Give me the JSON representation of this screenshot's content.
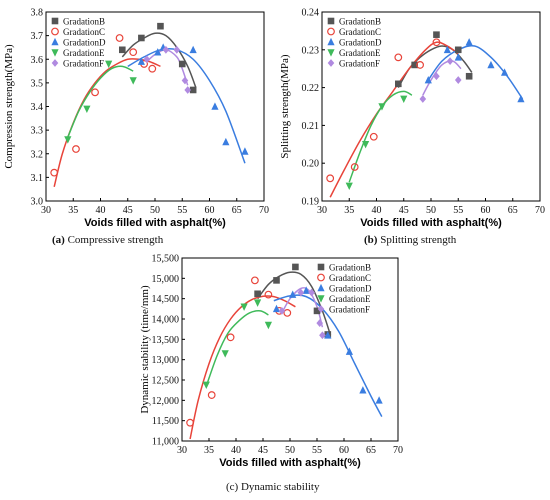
{
  "chart_data": [
    {
      "type": "scatter",
      "panel_letter": "(a)",
      "caption": "Compressive strength",
      "xlabel": "Voids filled with asphalt(%)",
      "ylabel": "Compression strength(MPa)",
      "xlim": [
        30,
        70
      ],
      "ylim": [
        3.0,
        3.8
      ],
      "xticks": [
        "30",
        "35",
        "40",
        "45",
        "50",
        "55",
        "60",
        "65",
        "70"
      ],
      "yticks": [
        "3.0",
        "3.1",
        "3.2",
        "3.3",
        "3.4",
        "3.5",
        "3.6",
        "3.7",
        "3.8"
      ],
      "legend_position": "top-left",
      "series": [
        {
          "name": "GradationB",
          "color": "#555555",
          "marker": "square",
          "points": [
            [
              44,
              3.64
            ],
            [
              47.5,
              3.69
            ],
            [
              51,
              3.74
            ],
            [
              55,
              3.58
            ],
            [
              57,
              3.47
            ]
          ],
          "fit": [
            [
              44,
              3.61
            ],
            [
              46,
              3.66
            ],
            [
              48,
              3.69
            ],
            [
              50,
              3.71
            ],
            [
              52,
              3.7
            ],
            [
              54,
              3.65
            ],
            [
              56,
              3.57
            ],
            [
              57.5,
              3.48
            ]
          ]
        },
        {
          "name": "GradationC",
          "color": "#e8443a",
          "marker": "circle",
          "points": [
            [
              31.5,
              3.12
            ],
            [
              35.5,
              3.22
            ],
            [
              39,
              3.46
            ],
            [
              43.5,
              3.69
            ],
            [
              46,
              3.63
            ],
            [
              48,
              3.58
            ],
            [
              49.5,
              3.56
            ]
          ],
          "fit": [
            [
              31.5,
              3.06
            ],
            [
              33,
              3.2
            ],
            [
              35,
              3.33
            ],
            [
              37,
              3.43
            ],
            [
              39,
              3.5
            ],
            [
              41,
              3.55
            ],
            [
              43,
              3.58
            ],
            [
              45,
              3.6
            ],
            [
              47,
              3.6
            ],
            [
              49,
              3.59
            ],
            [
              51,
              3.57
            ]
          ]
        },
        {
          "name": "GradationD",
          "color": "#3a7de0",
          "marker": "triangle-up",
          "points": [
            [
              47.5,
              3.59
            ],
            [
              50.5,
              3.63
            ],
            [
              51.5,
              3.65
            ],
            [
              57,
              3.64
            ],
            [
              61,
              3.4
            ],
            [
              63,
              3.25
            ],
            [
              66.5,
              3.21
            ]
          ],
          "fit": [
            [
              45,
              3.57
            ],
            [
              48,
              3.61
            ],
            [
              51,
              3.64
            ],
            [
              54,
              3.64
            ],
            [
              57,
              3.6
            ],
            [
              60,
              3.51
            ],
            [
              63,
              3.38
            ],
            [
              66.5,
              3.16
            ]
          ]
        },
        {
          "name": "GradationE",
          "color": "#3fba5a",
          "marker": "triangle-down",
          "points": [
            [
              34,
              3.26
            ],
            [
              37.5,
              3.39
            ],
            [
              41.5,
              3.58
            ],
            [
              46,
              3.51
            ]
          ],
          "fit": [
            [
              34,
              3.27
            ],
            [
              36,
              3.38
            ],
            [
              38,
              3.46
            ],
            [
              40,
              3.52
            ],
            [
              42,
              3.56
            ],
            [
              44,
              3.57
            ],
            [
              46,
              3.55
            ]
          ]
        },
        {
          "name": "GradationF",
          "color": "#b08ae0",
          "marker": "diamond",
          "points": [
            [
              48.5,
              3.6
            ],
            [
              52,
              3.64
            ],
            [
              54,
              3.64
            ],
            [
              55.5,
              3.51
            ],
            [
              56,
              3.47
            ]
          ],
          "fit": [
            [
              48.5,
              3.59
            ],
            [
              50,
              3.62
            ],
            [
              52,
              3.64
            ],
            [
              54,
              3.61
            ],
            [
              55,
              3.56
            ],
            [
              56,
              3.49
            ]
          ]
        }
      ]
    },
    {
      "type": "scatter",
      "panel_letter": "(b)",
      "caption": "Splitting strength",
      "xlabel": "Voids filled with asphalt(%)",
      "ylabel": "Splitting strength(MPa)",
      "xlim": [
        30,
        70
      ],
      "ylim": [
        0.19,
        0.24
      ],
      "xticks": [
        "30",
        "35",
        "40",
        "45",
        "50",
        "55",
        "60",
        "65",
        "70"
      ],
      "yticks": [
        "0.19",
        "0.20",
        "0.21",
        "0.22",
        "0.23",
        "0.24"
      ],
      "legend_position": "top-left",
      "series": [
        {
          "name": "GradationB",
          "color": "#555555",
          "marker": "square",
          "points": [
            [
              44,
              0.221
            ],
            [
              47,
              0.226
            ],
            [
              51,
              0.234
            ],
            [
              55,
              0.23
            ],
            [
              57,
              0.223
            ]
          ],
          "fit": [
            [
              44,
              0.22
            ],
            [
              46,
              0.225
            ],
            [
              48,
              0.228
            ],
            [
              50,
              0.23
            ],
            [
              52,
              0.231
            ],
            [
              54,
              0.23
            ],
            [
              56,
              0.227
            ],
            [
              57.5,
              0.224
            ]
          ]
        },
        {
          "name": "GradationC",
          "color": "#e8443a",
          "marker": "circle",
          "points": [
            [
              31.5,
              0.196
            ],
            [
              36,
              0.199
            ],
            [
              39.5,
              0.207
            ],
            [
              44,
              0.228
            ],
            [
              48,
              0.226
            ],
            [
              51,
              0.232
            ]
          ],
          "fit": [
            [
              31.5,
              0.191
            ],
            [
              34,
              0.198
            ],
            [
              37,
              0.206
            ],
            [
              40,
              0.213
            ],
            [
              43,
              0.219
            ],
            [
              46,
              0.225
            ],
            [
              49,
              0.23
            ],
            [
              51,
              0.232
            ],
            [
              53,
              0.231
            ],
            [
              55,
              0.229
            ]
          ]
        },
        {
          "name": "GradationD",
          "color": "#3a7de0",
          "marker": "triangle-up",
          "points": [
            [
              49.5,
              0.222
            ],
            [
              53,
              0.23
            ],
            [
              55,
              0.228
            ],
            [
              57,
              0.232
            ],
            [
              61,
              0.226
            ],
            [
              63.5,
              0.224
            ],
            [
              66.5,
              0.217
            ]
          ],
          "fit": [
            [
              49.5,
              0.222
            ],
            [
              52,
              0.227
            ],
            [
              55,
              0.23
            ],
            [
              58,
              0.231
            ],
            [
              61,
              0.228
            ],
            [
              64,
              0.223
            ],
            [
              66.8,
              0.217
            ]
          ]
        },
        {
          "name": "GradationE",
          "color": "#3fba5a",
          "marker": "triangle-down",
          "points": [
            [
              35,
              0.194
            ],
            [
              38,
              0.205
            ],
            [
              41,
              0.215
            ],
            [
              45,
              0.217
            ]
          ],
          "fit": [
            [
              35,
              0.195
            ],
            [
              37,
              0.203
            ],
            [
              39,
              0.21
            ],
            [
              41,
              0.215
            ],
            [
              43,
              0.218
            ],
            [
              45,
              0.219
            ],
            [
              46.5,
              0.218
            ]
          ]
        },
        {
          "name": "GradationF",
          "color": "#b08ae0",
          "marker": "diamond",
          "points": [
            [
              48.5,
              0.217
            ],
            [
              51,
              0.223
            ],
            [
              53.5,
              0.227
            ],
            [
              55,
              0.222
            ]
          ],
          "fit": [
            [
              48.5,
              0.218
            ],
            [
              50,
              0.222
            ],
            [
              52,
              0.226
            ],
            [
              54,
              0.227
            ],
            [
              55.5,
              0.225
            ]
          ]
        }
      ]
    },
    {
      "type": "scatter",
      "panel_letter": "(c)",
      "caption": "Dynamic stability",
      "xlabel": "Voids filled with asphalt(%)",
      "ylabel": "Dynamic stability (time/mm)",
      "xlim": [
        30,
        70
      ],
      "ylim": [
        11000,
        15500
      ],
      "xticks": [
        "30",
        "35",
        "40",
        "45",
        "50",
        "55",
        "60",
        "65",
        "70"
      ],
      "yticks": [
        "11,000",
        "11,500",
        "12,000",
        "12,500",
        "13,000",
        "13,500",
        "14,000",
        "14,500",
        "15,000",
        "15,500"
      ],
      "legend_position": "top-right",
      "series": [
        {
          "name": "GradationB",
          "color": "#555555",
          "marker": "square",
          "points": [
            [
              44,
              14620
            ],
            [
              47.5,
              14950
            ],
            [
              51,
              15280
            ],
            [
              55,
              14200
            ],
            [
              57,
              13620
            ]
          ],
          "fit": [
            [
              44,
              14500
            ],
            [
              46,
              14850
            ],
            [
              48,
              15050
            ],
            [
              50,
              15150
            ],
            [
              52,
              15100
            ],
            [
              54,
              14800
            ],
            [
              56,
              14200
            ],
            [
              57.5,
              13600
            ]
          ]
        },
        {
          "name": "GradationC",
          "color": "#e8443a",
          "marker": "circle",
          "points": [
            [
              31.5,
              11450
            ],
            [
              35.5,
              12130
            ],
            [
              39,
              13550
            ],
            [
              43.5,
              14950
            ],
            [
              46,
              14600
            ],
            [
              48,
              14200
            ],
            [
              49.5,
              14150
            ]
          ],
          "fit": [
            [
              31.5,
              11050
            ],
            [
              33,
              12000
            ],
            [
              35,
              12900
            ],
            [
              37,
              13550
            ],
            [
              39,
              14000
            ],
            [
              41,
              14300
            ],
            [
              43,
              14480
            ],
            [
              45,
              14560
            ],
            [
              47,
              14550
            ],
            [
              49,
              14450
            ],
            [
              51,
              14300
            ]
          ]
        },
        {
          "name": "GradationD",
          "color": "#3a7de0",
          "marker": "triangle-up",
          "points": [
            [
              47.5,
              14250
            ],
            [
              50.5,
              14600
            ],
            [
              53,
              14700
            ],
            [
              57,
              13600
            ],
            [
              61,
              13200
            ],
            [
              63.5,
              12250
            ],
            [
              66.5,
              12000
            ]
          ],
          "fit": [
            [
              47,
              14450
            ],
            [
              50,
              14570
            ],
            [
              53,
              14550
            ],
            [
              56,
              14250
            ],
            [
              59,
              13700
            ],
            [
              62,
              12900
            ],
            [
              65,
              12100
            ],
            [
              67,
              11600
            ]
          ]
        },
        {
          "name": "GradationE",
          "color": "#3fba5a",
          "marker": "triangle-down",
          "points": [
            [
              34.5,
              12380
            ],
            [
              38,
              13150
            ],
            [
              41.5,
              14300
            ],
            [
              44,
              14400
            ],
            [
              46,
              13850
            ]
          ],
          "fit": [
            [
              34.5,
              12350
            ],
            [
              36.5,
              13100
            ],
            [
              38.5,
              13650
            ],
            [
              40.5,
              13950
            ],
            [
              42.5,
              14150
            ],
            [
              44.5,
              14200
            ],
            [
              46,
              14100
            ]
          ]
        },
        {
          "name": "GradationF",
          "color": "#b08ae0",
          "marker": "diamond",
          "points": [
            [
              48.5,
              14200
            ],
            [
              52,
              14650
            ],
            [
              54,
              14650
            ],
            [
              55.5,
              13900
            ],
            [
              56,
              13600
            ]
          ],
          "fit": [
            [
              48.5,
              14150
            ],
            [
              50,
              14500
            ],
            [
              52,
              14750
            ],
            [
              53.5,
              14700
            ],
            [
              55,
              14300
            ],
            [
              56,
              13800
            ]
          ]
        }
      ]
    }
  ]
}
